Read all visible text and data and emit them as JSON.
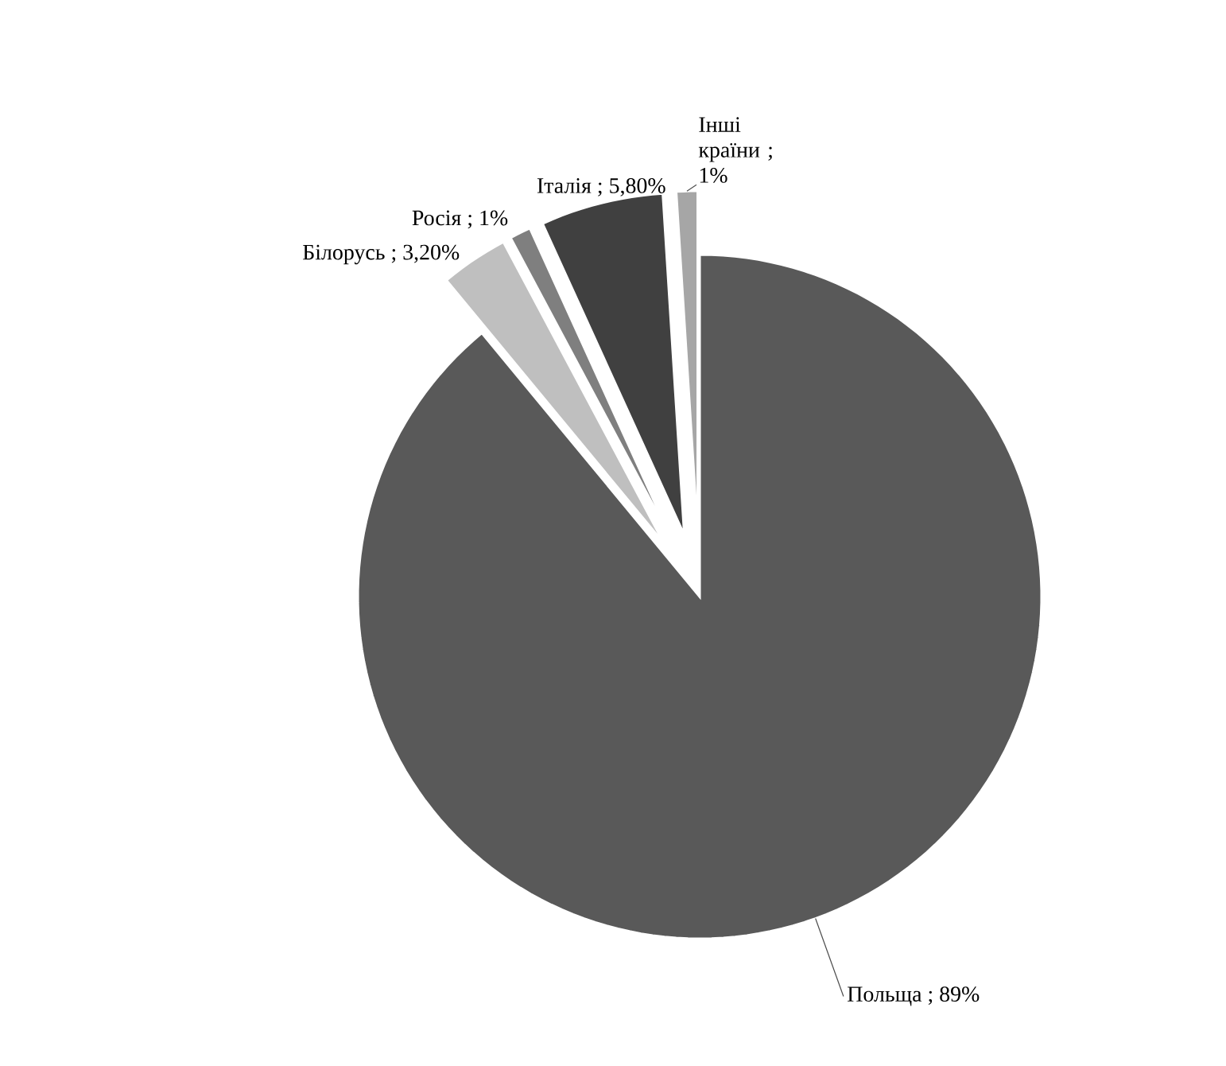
{
  "chart_data": {
    "type": "pie",
    "categories": [
      "Польща",
      "Білорусь",
      "Росія",
      "Італія",
      "Інші країни"
    ],
    "values": [
      89,
      3.2,
      1,
      5.8,
      1
    ],
    "value_labels": [
      "; 89%",
      "; 3,20%",
      "; 1%",
      "; 5,80%",
      "; 1%"
    ],
    "colors": [
      "#595959",
      "#bfbfbf",
      "#7f7f7f",
      "#404040",
      "#a6a6a6"
    ]
  }
}
